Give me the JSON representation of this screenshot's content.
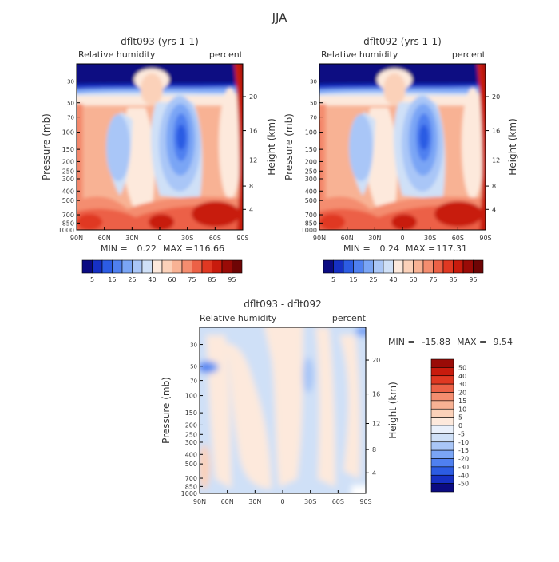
{
  "title": "JJA",
  "colors": {
    "abs_levels": [
      "#0b0b82",
      "#1630c4",
      "#2c5ce3",
      "#4f80f0",
      "#7aa5f5",
      "#a9c6f7",
      "#cfe0f7",
      "#fde9dc",
      "#fbd1b9",
      "#f8b294",
      "#f48d6f",
      "#ec6146",
      "#e03822",
      "#c81b0d",
      "#9a0b07",
      "#6e0505"
    ],
    "diff_levels": [
      "#0b0b82",
      "#1630c4",
      "#2c5ce3",
      "#4f80f0",
      "#7aa5f5",
      "#a9c6f7",
      "#cfe0f7",
      "#e9f0fb",
      "#fde9dc",
      "#fbd1b9",
      "#f8b294",
      "#f48d6f",
      "#ec6146",
      "#e03822",
      "#c81b0d",
      "#9a0b07"
    ]
  },
  "chart_data": [
    {
      "type": "heatmap",
      "title": "dflt093 (yrs 1-1)",
      "subtitle_left": "Relative humidity",
      "subtitle_right": "percent",
      "xlabel": "",
      "ylabel": "Pressure (mb)",
      "ylabel_right": "Height (km)",
      "x_ticks": [
        "90N",
        "60N",
        "30N",
        "0",
        "30S",
        "60S",
        "90S"
      ],
      "y_ticks": [
        "30",
        "50",
        "70",
        "100",
        "150",
        "200",
        "250",
        "300",
        "400",
        "500",
        "700",
        "850",
        "1000"
      ],
      "height_ticks": [
        "20",
        "16",
        "12",
        "8",
        "4"
      ],
      "min_label": "MIN =",
      "min_value": "0.22",
      "max_label": "MAX =",
      "max_value": "116.66",
      "colorbar_labels": [
        "5",
        "15",
        "25",
        "40",
        "60",
        "75",
        "85",
        "95"
      ]
    },
    {
      "type": "heatmap",
      "title": "dflt092 (yrs 1-1)",
      "subtitle_left": "Relative humidity",
      "subtitle_right": "percent",
      "xlabel": "",
      "ylabel": "Pressure (mb)",
      "ylabel_right": "Height (km)",
      "x_ticks": [
        "90N",
        "60N",
        "30N",
        "0",
        "30S",
        "60S",
        "90S"
      ],
      "y_ticks": [
        "30",
        "50",
        "70",
        "100",
        "150",
        "200",
        "250",
        "300",
        "400",
        "500",
        "700",
        "850",
        "1000"
      ],
      "height_ticks": [
        "20",
        "16",
        "12",
        "8",
        "4"
      ],
      "min_label": "MIN =",
      "min_value": "0.24",
      "max_label": "MAX =",
      "max_value": "117.31",
      "colorbar_labels": [
        "5",
        "15",
        "25",
        "40",
        "60",
        "75",
        "85",
        "95"
      ]
    },
    {
      "type": "heatmap",
      "title": "dflt093 - dflt092",
      "subtitle_left": "Relative humidity",
      "subtitle_right": "percent",
      "xlabel": "",
      "ylabel": "Pressure (mb)",
      "ylabel_right": "Height (km)",
      "x_ticks": [
        "90N",
        "60N",
        "30N",
        "0",
        "30S",
        "60S",
        "90S"
      ],
      "y_ticks": [
        "30",
        "50",
        "70",
        "100",
        "150",
        "200",
        "250",
        "300",
        "400",
        "500",
        "700",
        "850",
        "1000"
      ],
      "height_ticks": [
        "20",
        "16",
        "12",
        "8",
        "4"
      ],
      "min_label": "MIN =",
      "min_value": "-15.88",
      "max_label": "MAX =",
      "max_value": "9.54",
      "colorbar_labels": [
        "50",
        "40",
        "30",
        "20",
        "15",
        "10",
        "5",
        "0",
        "-5",
        "-10",
        "-15",
        "-20",
        "-30",
        "-40",
        "-50"
      ]
    }
  ]
}
